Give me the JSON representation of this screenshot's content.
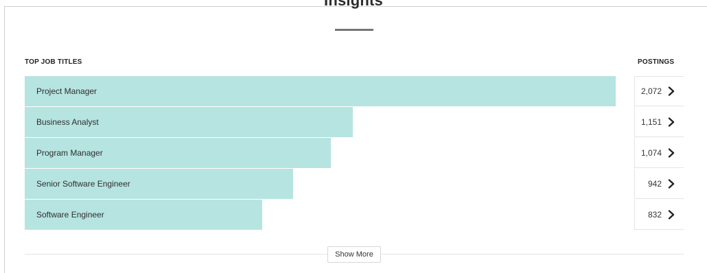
{
  "section": {
    "title": "Insights"
  },
  "table": {
    "left_header": "TOP JOB TITLES",
    "right_header": "POSTINGS",
    "rows": [
      {
        "title": "Project Manager",
        "postings": "2,072",
        "value": 2072
      },
      {
        "title": "Business Analyst",
        "postings": "1,151",
        "value": 1151
      },
      {
        "title": "Program Manager",
        "postings": "1,074",
        "value": 1074
      },
      {
        "title": "Senior Software Engineer",
        "postings": "942",
        "value": 942
      },
      {
        "title": "Software Engineer",
        "postings": "832",
        "value": 832
      }
    ],
    "bar_color": "#b6e4e1",
    "max_value": 2072
  },
  "footer": {
    "show_more_label": "Show More"
  }
}
